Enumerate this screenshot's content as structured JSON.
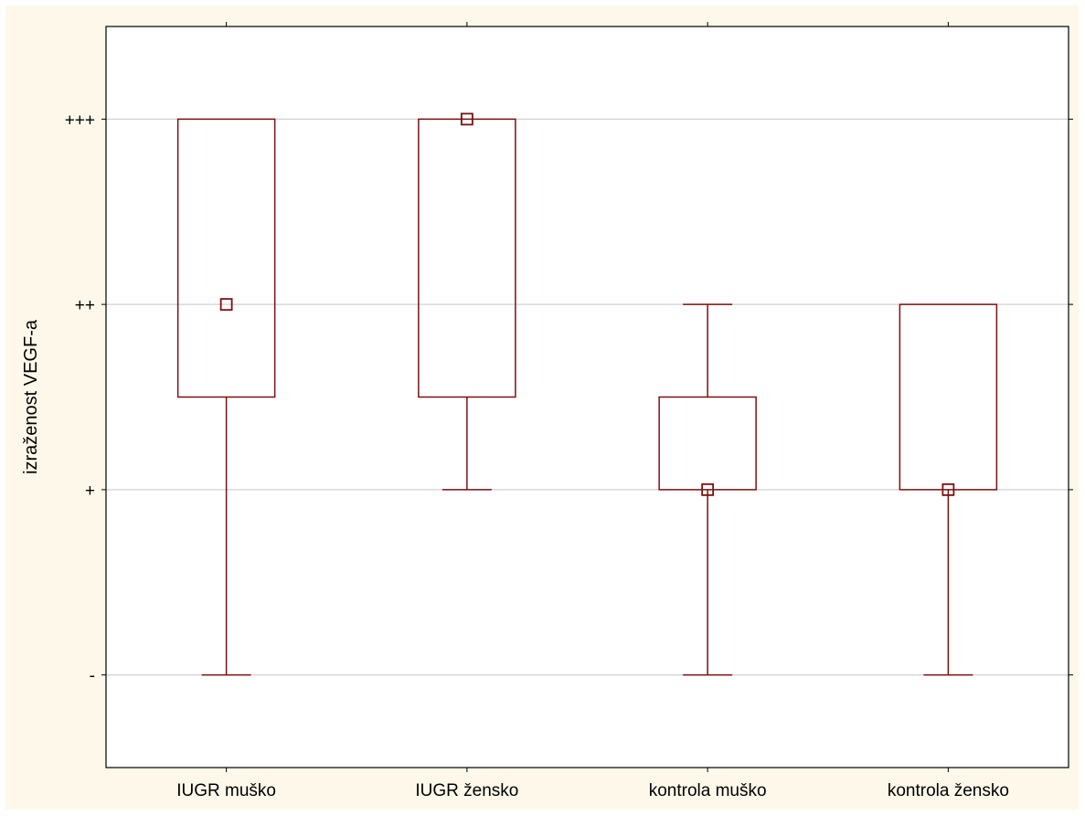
{
  "chart_data": {
    "type": "boxplot",
    "title": "",
    "xlabel": "",
    "ylabel": "izraženost VEGF-a",
    "y_levels": [
      "-",
      "+",
      "++",
      "+++"
    ],
    "y_values": [
      0,
      1,
      2,
      3
    ],
    "ylim": [
      -0.5,
      3.5
    ],
    "grid": "horizontal",
    "categories": [
      "IUGR muško",
      "IUGR žensko",
      "kontrola muško",
      "kontrola žensko"
    ],
    "boxes": [
      {
        "category": "IUGR muško",
        "min": 0,
        "q1": 1.5,
        "median": 2,
        "q3": 3,
        "max": 3
      },
      {
        "category": "IUGR žensko",
        "min": 1,
        "q1": 1.5,
        "median": 3,
        "q3": 3,
        "max": 3
      },
      {
        "category": "kontrola muško",
        "min": 0,
        "q1": 1,
        "median": 1,
        "q3": 1.5,
        "max": 2
      },
      {
        "category": "kontrola žensko",
        "min": 0,
        "q1": 1,
        "median": 1,
        "q3": 2,
        "max": 2
      }
    ],
    "colors": {
      "box": "#7b1010",
      "grid": "#d0d0d0",
      "axis": "#000000",
      "figure_background": "#fdf8ea",
      "plot_background": "#ffffff"
    }
  }
}
